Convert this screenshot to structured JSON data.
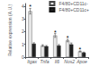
{
  "chart_data": {
    "type": "bar",
    "categories": [
      "Itgax",
      "Tnfa",
      "Il6",
      "Nos2",
      "Apoe"
    ],
    "series": [
      {
        "name": "F4/80+CD11c-",
        "color": "#e8e8e8",
        "values": [
          3.6,
          0.9,
          1.7,
          1.3,
          0.45
        ],
        "errors": [
          0.22,
          0.07,
          0.15,
          0.1,
          0.04
        ]
      },
      {
        "name": "F4/80+CD11c+",
        "color": "#222222",
        "values": [
          1.05,
          0.85,
          0.9,
          1.0,
          0.35
        ],
        "errors": [
          0.08,
          0.06,
          0.09,
          0.11,
          0.04
        ]
      }
    ],
    "ylabel": "Relative expression (A.U.)",
    "ylim": [
      0,
      4.2
    ],
    "yticks": [
      0,
      1,
      2,
      3,
      4
    ],
    "grid": false,
    "legend": "upper right",
    "annotations": [
      {
        "text": "*",
        "category": "Itgax",
        "series": "F4/80+CD11c-"
      },
      {
        "text": "*",
        "category": "Il6",
        "series": "F4/80+CD11c-"
      },
      {
        "text": "*",
        "category": "Nos2",
        "series": "F4/80+CD11c-"
      },
      {
        "text": "*",
        "category": "Apoe",
        "series": "F4/80+CD11c-"
      }
    ]
  }
}
